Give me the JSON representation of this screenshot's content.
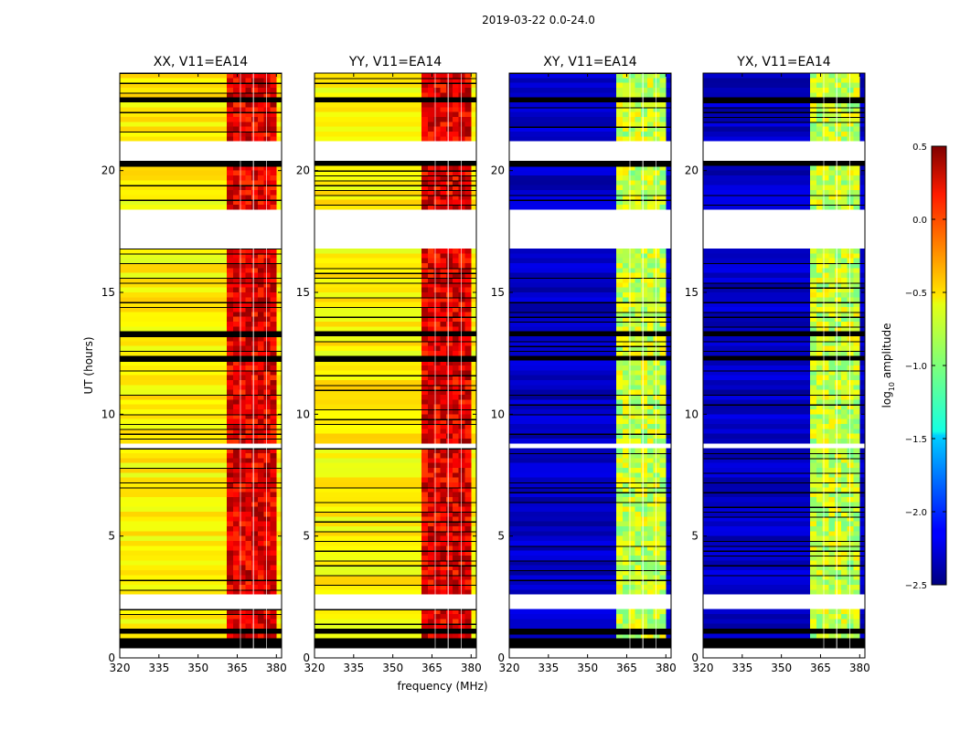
{
  "figure": {
    "suptitle": "2019-03-22 0.0-24.0",
    "colormap": "jet"
  },
  "chart_data": [
    {
      "type": "heatmap",
      "title": "XX, V11=EA14",
      "xlabel": "",
      "ylabel": "UT (hours)",
      "xlim": [
        320,
        382
      ],
      "ylim": [
        0,
        24
      ],
      "xticks": [
        "320",
        "335",
        "350",
        "365",
        "380"
      ],
      "yticks": [
        "0",
        "5",
        "10",
        "15",
        "20"
      ],
      "base_log10_amplitude": -0.6,
      "rfi_band_mhz": [
        361,
        380
      ],
      "rfi_band_log10_amplitude": 0.2
    },
    {
      "type": "heatmap",
      "title": "YY, V11=EA14",
      "xlabel": "frequency (MHz)",
      "ylabel": "",
      "xlim": [
        320,
        382
      ],
      "ylim": [
        0,
        24
      ],
      "xticks": [
        "320",
        "335",
        "350",
        "365",
        "380"
      ],
      "yticks": [
        "0",
        "5",
        "10",
        "15",
        "20"
      ],
      "base_log10_amplitude": -0.6,
      "rfi_band_mhz": [
        361,
        380
      ],
      "rfi_band_log10_amplitude": 0.2
    },
    {
      "type": "heatmap",
      "title": "XY, V11=EA14",
      "xlabel": "",
      "ylabel": "",
      "xlim": [
        320,
        382
      ],
      "ylim": [
        0,
        24
      ],
      "xticks": [
        "320",
        "335",
        "350",
        "365",
        "380"
      ],
      "yticks": [
        "0",
        "5",
        "10",
        "15",
        "20"
      ],
      "base_log10_amplitude": -2.3,
      "rfi_band_mhz": [
        361,
        380
      ],
      "rfi_band_log10_amplitude": -0.8
    },
    {
      "type": "heatmap",
      "title": "YX, V11=EA14",
      "xlabel": "",
      "ylabel": "",
      "xlim": [
        320,
        382
      ],
      "ylim": [
        0,
        24
      ],
      "xticks": [
        "320",
        "335",
        "350",
        "365",
        "380"
      ],
      "yticks": [
        "0",
        "5",
        "10",
        "15",
        "20"
      ],
      "base_log10_amplitude": -2.3,
      "rfi_band_mhz": [
        361,
        380
      ],
      "rfi_band_log10_amplitude": -0.8
    }
  ],
  "colorbar": {
    "label_prefix": "log",
    "label_sub": "10",
    "label_suffix": " amplitude",
    "range": [
      -2.5,
      0.5
    ],
    "ticks": [
      {
        "value": 0.5,
        "label": "0.5"
      },
      {
        "value": 0.0,
        "label": "0.0"
      },
      {
        "value": -0.5,
        "label": "−0.5"
      },
      {
        "value": -1.0,
        "label": "−1.0"
      },
      {
        "value": -1.5,
        "label": "−1.5"
      },
      {
        "value": -2.0,
        "label": "−2.0"
      },
      {
        "value": -2.5,
        "label": "−2.5"
      }
    ]
  }
}
